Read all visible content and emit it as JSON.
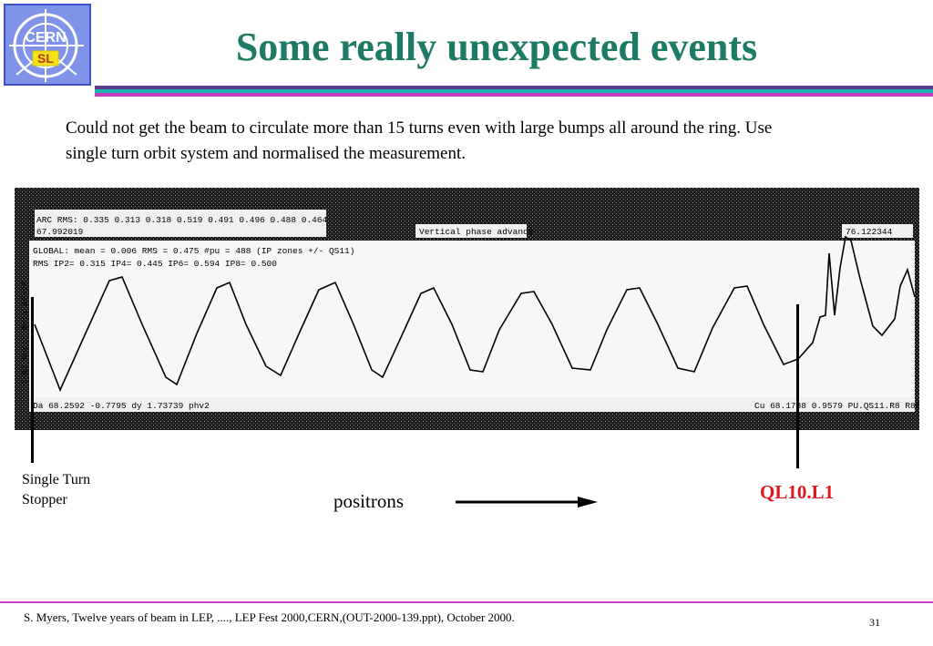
{
  "logo": {
    "line1": "CERN",
    "line2": "SL"
  },
  "title": "Some really unexpected events",
  "body_text": "Could not get the beam to circulate more than 15 turns even with large bumps all around the ring. Use single turn orbit system and normalised the measurement.",
  "screen": {
    "arc_rms": "ARC RMS:  0.335  0.313  0.318  0.519  0.491  0.496  0.488  0.464",
    "left_value": "67.992019",
    "center_label": "Vertical phase advance",
    "right_value": "76.122344",
    "global_line": "GLOBAL: mean =   0.006  RMS =    0.475  #pu = 488 (IP zones +/- QS11)",
    "rms_line": "RMS IP2= 0.315  IP4= 0.445  IP6= 0.594  IP8= 0.500",
    "side_text": "1-B1 Norct Beta 3E+28",
    "bottom_left": "Da 68.2592 -0.7795 dy 1.73739  phv2",
    "bottom_right": "Cu 68.1788  0.9579 PU.QS11.R8  R85"
  },
  "labels": {
    "stopper_line1": "Single Turn",
    "stopper_line2": "Stopper",
    "positrons": "positrons",
    "ql": "QL10.L1"
  },
  "footer": "S. Myers, Twelve years of beam in LEP, ....,  LEP Fest 2000,CERN,(OUT-2000-139.ppt), October 2000.",
  "page_number": "31",
  "colors": {
    "title": "#1d7a64",
    "ql_label": "#e0161f",
    "rule_top": "#5a3e8f",
    "rule_mid": "#1bb6b0",
    "rule_bottom": "#c83ec6",
    "logo_bg": "#7f93e8"
  }
}
